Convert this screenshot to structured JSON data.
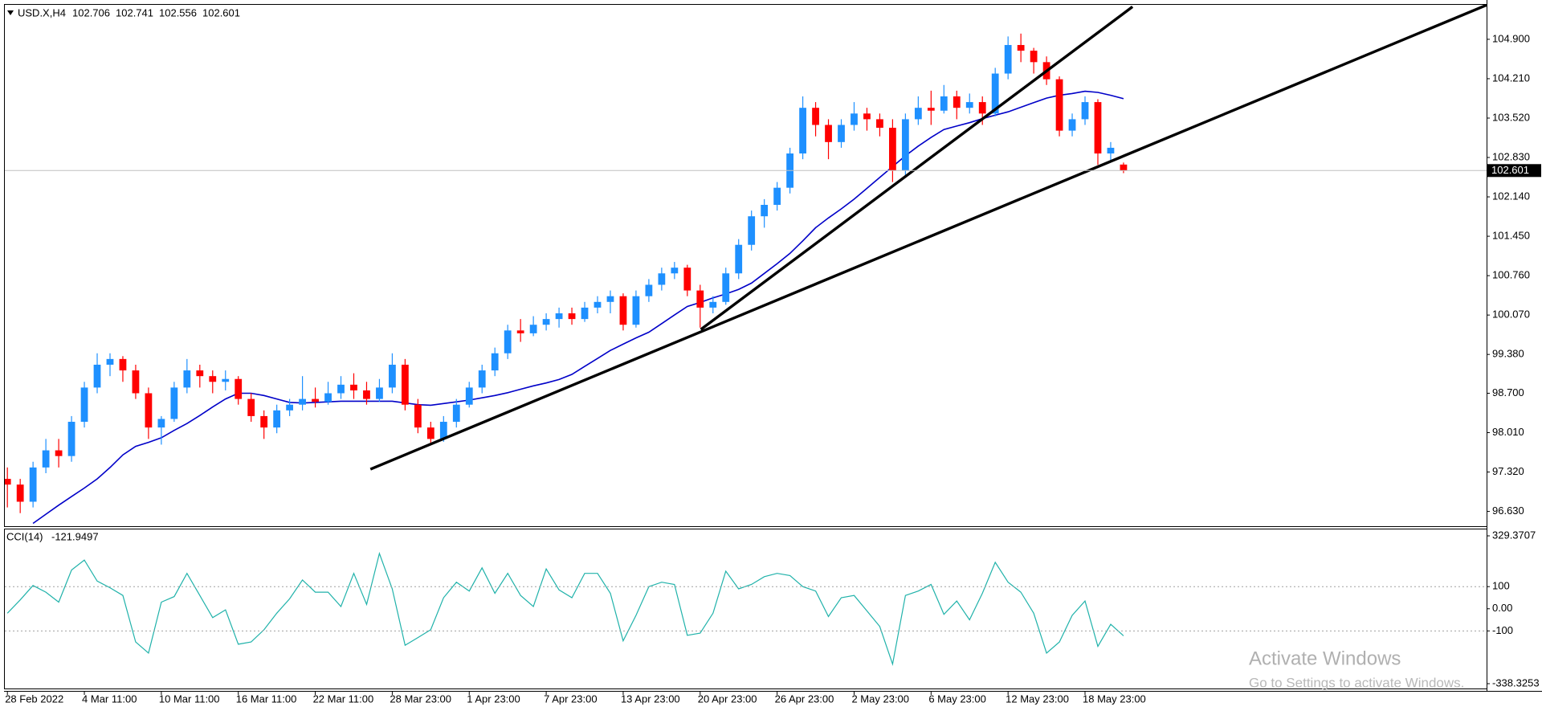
{
  "chart_data": [
    {
      "type": "candlestick",
      "title": "USD.X,H4",
      "header_values": [
        102.706,
        102.741,
        102.556,
        102.601
      ],
      "x": [
        0,
        1,
        2,
        3,
        4,
        5,
        6,
        7,
        8,
        9,
        10,
        11,
        12,
        13,
        14,
        15,
        16,
        17,
        18,
        19,
        20,
        21,
        22,
        23,
        24,
        25,
        26,
        27,
        28,
        29,
        30,
        31,
        32,
        33,
        34,
        35,
        36,
        37,
        38,
        39,
        40,
        41,
        42,
        43,
        44,
        45,
        46,
        47,
        48,
        49,
        50,
        51,
        52,
        53,
        54,
        55,
        56,
        57,
        58,
        59,
        60,
        61,
        62,
        63,
        64,
        65,
        66,
        67,
        68,
        69,
        70,
        71,
        72,
        73,
        74,
        75,
        76,
        77,
        78,
        79,
        80,
        81,
        82,
        83,
        84,
        85,
        86,
        87
      ],
      "open": [
        97.2,
        97.1,
        96.8,
        97.4,
        97.7,
        97.6,
        98.2,
        98.8,
        99.2,
        99.3,
        99.1,
        98.7,
        98.1,
        98.25,
        98.8,
        99.1,
        99.0,
        98.9,
        98.95,
        98.6,
        98.3,
        98.1,
        98.4,
        98.5,
        98.6,
        98.55,
        98.7,
        98.85,
        98.75,
        98.6,
        98.8,
        99.2,
        98.5,
        98.1,
        97.9,
        98.2,
        98.5,
        98.8,
        99.1,
        99.4,
        99.8,
        99.75,
        99.9,
        100.0,
        100.1,
        100.0,
        100.2,
        100.3,
        100.4,
        99.9,
        100.4,
        100.6,
        100.8,
        100.9,
        100.5,
        100.2,
        100.3,
        100.8,
        101.3,
        101.8,
        102.0,
        102.3,
        102.9,
        103.7,
        103.4,
        103.1,
        103.4,
        103.6,
        103.5,
        103.35,
        102.6,
        103.5,
        103.7,
        103.65,
        103.9,
        103.7,
        103.8,
        103.6,
        104.3,
        104.8,
        104.7,
        104.5,
        104.2,
        103.3,
        103.5,
        103.8,
        102.9,
        102.706
      ],
      "high": [
        97.4,
        97.2,
        97.5,
        97.9,
        97.9,
        98.3,
        98.9,
        99.4,
        99.4,
        99.35,
        99.2,
        98.8,
        98.3,
        98.9,
        99.3,
        99.2,
        99.1,
        99.1,
        99.0,
        98.7,
        98.4,
        98.5,
        98.6,
        99.0,
        98.8,
        98.9,
        99.0,
        99.05,
        98.9,
        98.95,
        99.4,
        99.3,
        98.6,
        98.2,
        98.3,
        98.6,
        98.9,
        99.2,
        99.5,
        99.9,
        100.0,
        100.05,
        100.1,
        100.2,
        100.2,
        100.3,
        100.4,
        100.5,
        100.45,
        100.5,
        100.7,
        100.9,
        101.0,
        100.95,
        100.6,
        100.4,
        100.9,
        101.4,
        101.9,
        102.1,
        102.4,
        103.0,
        103.9,
        103.8,
        103.5,
        103.5,
        103.8,
        103.7,
        103.6,
        103.5,
        103.6,
        103.9,
        104.0,
        104.1,
        104.0,
        103.95,
        103.9,
        104.4,
        104.95,
        105.0,
        104.75,
        104.6,
        104.25,
        103.6,
        103.9,
        103.85,
        103.1,
        102.741
      ],
      "low": [
        96.7,
        96.6,
        96.7,
        97.3,
        97.4,
        97.5,
        98.1,
        98.7,
        99.0,
        98.9,
        98.6,
        97.9,
        97.8,
        98.2,
        98.7,
        98.8,
        98.7,
        98.75,
        98.5,
        98.2,
        97.9,
        98.0,
        98.3,
        98.4,
        98.45,
        98.5,
        98.6,
        98.6,
        98.5,
        98.55,
        98.7,
        98.4,
        98.0,
        97.8,
        97.85,
        98.1,
        98.45,
        98.7,
        99.0,
        99.3,
        99.6,
        99.7,
        99.8,
        99.85,
        99.9,
        99.95,
        100.1,
        100.1,
        99.8,
        99.85,
        100.3,
        100.5,
        100.7,
        100.4,
        99.85,
        100.1,
        100.25,
        100.7,
        101.2,
        101.6,
        101.9,
        102.2,
        102.8,
        103.2,
        102.8,
        103.0,
        103.3,
        103.3,
        103.2,
        102.4,
        102.5,
        103.4,
        103.4,
        103.6,
        103.5,
        103.6,
        103.4,
        103.55,
        104.2,
        104.5,
        104.3,
        104.1,
        103.2,
        103.2,
        103.4,
        102.7,
        102.75,
        102.556
      ],
      "close": [
        97.1,
        96.8,
        97.4,
        97.7,
        97.6,
        98.2,
        98.8,
        99.2,
        99.3,
        99.1,
        98.7,
        98.1,
        98.25,
        98.8,
        99.1,
        99.0,
        98.9,
        98.95,
        98.6,
        98.3,
        98.1,
        98.4,
        98.5,
        98.6,
        98.55,
        98.7,
        98.85,
        98.75,
        98.6,
        98.8,
        99.2,
        98.5,
        98.1,
        97.9,
        98.2,
        98.5,
        98.8,
        99.1,
        99.4,
        99.8,
        99.75,
        99.9,
        100.0,
        100.1,
        100.0,
        100.2,
        100.3,
        100.4,
        99.9,
        100.4,
        100.6,
        100.8,
        100.9,
        100.5,
        100.2,
        100.3,
        100.8,
        101.3,
        101.8,
        102.0,
        102.3,
        102.9,
        103.7,
        103.4,
        103.1,
        103.4,
        103.6,
        103.5,
        103.35,
        102.6,
        103.5,
        103.7,
        103.65,
        103.9,
        103.7,
        103.8,
        103.6,
        104.3,
        104.8,
        104.7,
        104.5,
        104.2,
        103.3,
        103.5,
        103.8,
        102.9,
        103.0,
        102.601
      ],
      "up_color": "#1e90ff",
      "down_color": "#ff0000",
      "moving_average": {
        "color": "#0000c8",
        "values": [
          null,
          null,
          96.42,
          96.58,
          96.74,
          96.89,
          97.04,
          97.2,
          97.4,
          97.62,
          97.77,
          97.84,
          97.92,
          98.05,
          98.17,
          98.31,
          98.46,
          98.6,
          98.7,
          98.7,
          98.66,
          98.6,
          98.54,
          98.53,
          98.54,
          98.55,
          98.56,
          98.56,
          98.56,
          98.56,
          98.56,
          98.53,
          98.5,
          98.49,
          98.52,
          98.55,
          98.58,
          98.62,
          98.66,
          98.71,
          98.77,
          98.83,
          98.88,
          98.94,
          99.03,
          99.17,
          99.31,
          99.45,
          99.56,
          99.67,
          99.77,
          99.92,
          100.07,
          100.22,
          100.29,
          100.37,
          100.44,
          100.52,
          100.63,
          100.8,
          100.97,
          101.15,
          101.37,
          101.6,
          101.77,
          101.93,
          102.1,
          102.29,
          102.48,
          102.67,
          102.86,
          103.03,
          103.18,
          103.32,
          103.38,
          103.44,
          103.51,
          103.57,
          103.63,
          103.71,
          103.79,
          103.87,
          103.92,
          103.95,
          103.99,
          103.97,
          103.92,
          103.86
        ]
      },
      "trendlines": [
        {
          "color": "#000000",
          "x": [
            28.3,
            115.3
          ],
          "y": [
            97.37,
            105.5
          ]
        },
        {
          "color": "#000000",
          "x": [
            54.05,
            87.7
          ],
          "y": [
            99.817,
            105.47
          ]
        }
      ],
      "last_price": 102.601,
      "xlim": [
        -0.2,
        115.3
      ],
      "ylim": [
        96.371,
        105.504
      ],
      "yticks": [
        {
          "value": 96.63,
          "label": "96.630"
        },
        {
          "value": 97.32,
          "label": "97.320"
        },
        {
          "value": 98.01,
          "label": "98.010"
        },
        {
          "value": 98.7,
          "label": "98.700"
        },
        {
          "value": 99.38,
          "label": "99.380"
        },
        {
          "value": 100.07,
          "label": "100.070"
        },
        {
          "value": 100.76,
          "label": "100.760"
        },
        {
          "value": 101.45,
          "label": "101.450"
        },
        {
          "value": 102.14,
          "label": "102.140"
        },
        {
          "value": 102.83,
          "label": "102.830"
        },
        {
          "value": 103.52,
          "label": "103.520"
        },
        {
          "value": 104.21,
          "label": "104.210"
        },
        {
          "value": 104.9,
          "label": "104.900"
        }
      ],
      "xticks": [
        {
          "value": 0,
          "label": "28 Feb 2022"
        },
        {
          "value": 6,
          "label": "4 Mar 11:00"
        },
        {
          "value": 12,
          "label": "10 Mar 11:00"
        },
        {
          "value": 18,
          "label": "16 Mar 11:00"
        },
        {
          "value": 24,
          "label": "22 Mar 11:00"
        },
        {
          "value": 30,
          "label": "28 Mar 23:00"
        },
        {
          "value": 36,
          "label": "1 Apr 23:00"
        },
        {
          "value": 42,
          "label": "7 Apr 23:00"
        },
        {
          "value": 48,
          "label": "13 Apr 23:00"
        },
        {
          "value": 54,
          "label": "20 Apr 23:00"
        },
        {
          "value": 60,
          "label": "26 Apr 23:00"
        },
        {
          "value": 66,
          "label": "2 May 23:00"
        },
        {
          "value": 72,
          "label": "6 May 23:00"
        },
        {
          "value": 78,
          "label": "12 May 23:00"
        },
        {
          "value": 84,
          "label": "18 May 23:00"
        }
      ]
    },
    {
      "type": "line",
      "title": "CCI(14)",
      "last_value": -121.9497,
      "color": "#20b2aa",
      "x": [
        0,
        1,
        2,
        3,
        4,
        5,
        6,
        7,
        8,
        9,
        10,
        11,
        12,
        13,
        14,
        15,
        16,
        17,
        18,
        19,
        20,
        21,
        22,
        23,
        24,
        25,
        26,
        27,
        28,
        29,
        30,
        31,
        32,
        33,
        34,
        35,
        36,
        37,
        38,
        39,
        40,
        41,
        42,
        43,
        44,
        45,
        46,
        47,
        48,
        49,
        50,
        51,
        52,
        53,
        54,
        55,
        56,
        57,
        58,
        59,
        60,
        61,
        62,
        63,
        64,
        65,
        66,
        67,
        68,
        69,
        70,
        71,
        72,
        73,
        74,
        75,
        76,
        77,
        78,
        79,
        80,
        81,
        82,
        83,
        84,
        85,
        86,
        87
      ],
      "values": [
        -20,
        40,
        105,
        75,
        30,
        175,
        220,
        125,
        95,
        60,
        -150,
        -200,
        30,
        55,
        160,
        60,
        -40,
        -5,
        -160,
        -150,
        -95,
        -20,
        45,
        130,
        75,
        75,
        10,
        160,
        20,
        250,
        90,
        -165,
        -130,
        -95,
        50,
        120,
        80,
        185,
        70,
        160,
        60,
        10,
        180,
        85,
        50,
        160,
        160,
        70,
        -145,
        -30,
        100,
        120,
        110,
        -120,
        -110,
        -20,
        170,
        90,
        110,
        145,
        160,
        150,
        100,
        80,
        -35,
        50,
        60,
        -10,
        -80,
        -250,
        60,
        80,
        110,
        -25,
        35,
        -50,
        70,
        210,
        120,
        75,
        -20,
        -200,
        -150,
        -30,
        35,
        -170,
        -70,
        -121.9497
      ],
      "levels": [
        100,
        -100
      ],
      "xlim": [
        -0.2,
        115.3
      ],
      "ylim": [
        -338.3253,
        329.3707
      ],
      "yticks": [
        329.3707,
        100,
        {
          "value": 0,
          "label": "0.00"
        },
        -100,
        -338.3253
      ]
    }
  ],
  "watermark": {
    "title": "Activate Windows",
    "subtitle": "Go to Settings to activate Windows."
  }
}
